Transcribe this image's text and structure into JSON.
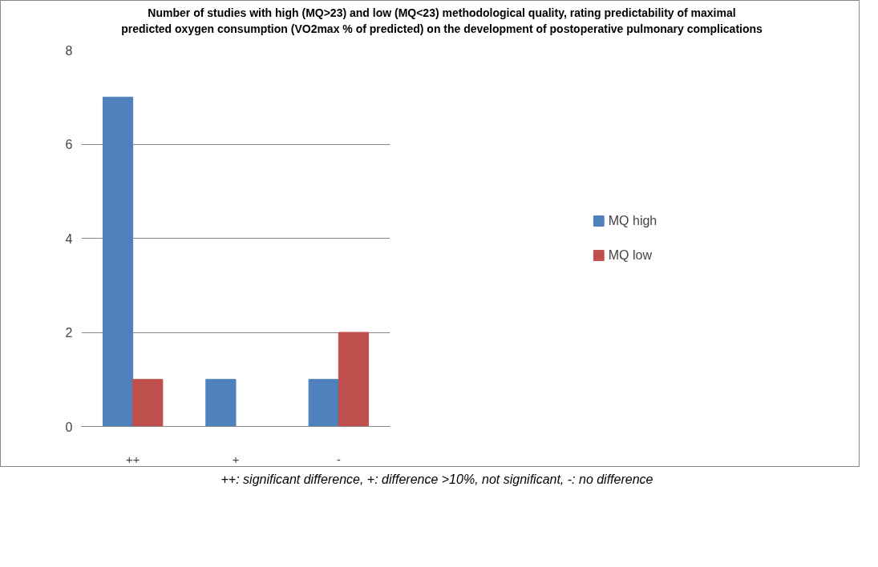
{
  "chart_data": {
    "type": "bar",
    "title": "Number of studies with high (MQ>23) and low (MQ<23) methodological quality, rating predictability of maximal predicted oxygen consumption (VO2max % of predicted) on the development of postoperative pulmonary complications",
    "categories": [
      "++",
      "+",
      "-"
    ],
    "series": [
      {
        "name": "MQ high",
        "color": "#4f81bd",
        "values": [
          7,
          1,
          1
        ]
      },
      {
        "name": "MQ low",
        "color": "#c0504d",
        "values": [
          1,
          0,
          2
        ]
      }
    ],
    "ylim": [
      0,
      8
    ],
    "yticks": [
      0,
      2,
      4,
      6,
      8
    ],
    "grid": "y",
    "legend": "right",
    "annotations": [
      "++: significant difference, +: difference >10%, not significant, -: no difference"
    ]
  }
}
